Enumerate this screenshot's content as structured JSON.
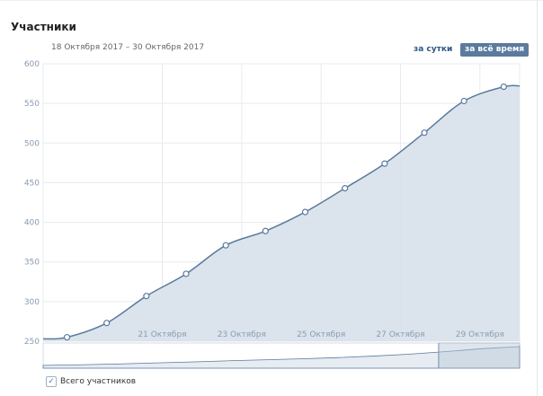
{
  "header": {
    "title": "Участники",
    "date_range": "18 Октября 2017 – 30 Октября 2017",
    "btn_per_day": "за сутки",
    "btn_all_time": "за всё время"
  },
  "legend": {
    "label": "Всего участников",
    "checked": true
  },
  "colors": {
    "line": "#5b7a9e",
    "area": "#d7e1ea",
    "grid": "#e7ebef",
    "accent_button": "#5b7a9e"
  },
  "chart_data": {
    "type": "area",
    "title": "",
    "x_tick_labels": [
      "21 Октября",
      "23 Октября",
      "25 Октября",
      "27 Октября",
      "29 Октября"
    ],
    "x_tick_days": [
      21,
      23,
      25,
      27,
      29
    ],
    "xlim": [
      18,
      30
    ],
    "ylim": [
      250,
      600
    ],
    "y_ticks": [
      250,
      300,
      350,
      400,
      450,
      500,
      550,
      600
    ],
    "grid": true,
    "series": [
      {
        "x": [
          18,
          18.6,
          19.6,
          20.6,
          21.6,
          22.6,
          23.6,
          24.6,
          25.6,
          26.6,
          27.6,
          28.6,
          29.6,
          30
        ],
        "values": [
          253,
          255,
          273,
          307,
          335,
          371,
          389,
          413,
          443,
          474,
          513,
          553,
          571,
          572
        ],
        "markers": [
          false,
          true,
          true,
          true,
          true,
          true,
          true,
          true,
          true,
          true,
          true,
          true,
          true,
          false
        ]
      }
    ],
    "navigator": {
      "values": [
        0.05,
        0.08,
        0.12,
        0.17,
        0.22,
        0.28,
        0.33,
        0.38,
        0.44,
        0.52,
        0.62,
        0.75,
        0.9,
        1.0
      ],
      "selection_start_fraction": 0.83
    }
  }
}
